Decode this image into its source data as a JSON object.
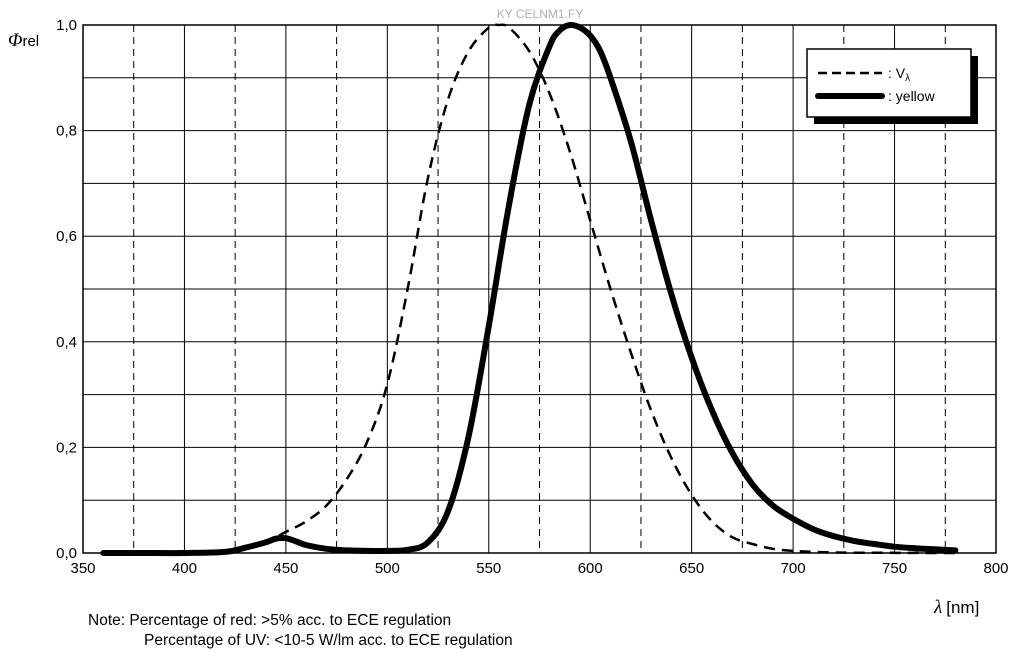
{
  "chart_data": {
    "type": "line",
    "watermark": "KY CELNM1.FY",
    "ylabel_symbol": "Φ",
    "ylabel_sub": "rel",
    "xlabel_symbol": "λ",
    "xlabel_unit": "[nm]",
    "xlim": [
      350,
      800
    ],
    "ylim": [
      0,
      1.0
    ],
    "x_ticks": [
      350,
      400,
      450,
      500,
      550,
      600,
      650,
      700,
      750,
      800
    ],
    "x_tick_labels": [
      "350",
      "400",
      "450",
      "500",
      "550",
      "600",
      "650",
      "700",
      "750",
      "800"
    ],
    "x_minor_dashed": [
      375,
      425,
      475,
      525,
      575,
      625,
      675,
      725,
      775
    ],
    "y_ticks": [
      0,
      0.2,
      0.4,
      0.6,
      0.8,
      1.0
    ],
    "y_tick_labels": [
      "0,0",
      "0,2",
      "0,4",
      "0,6",
      "0,8",
      "1,0"
    ],
    "y_minor": [
      0.1,
      0.3,
      0.5,
      0.7,
      0.9
    ],
    "grid": true,
    "legend_position": "top-right",
    "legend": [
      {
        "style": "dashed",
        "label": ": V",
        "sub": "λ"
      },
      {
        "style": "solid",
        "label": ": yellow"
      }
    ],
    "series": [
      {
        "name": "Vλ",
        "style": "dashed",
        "x": [
          430,
          440,
          450,
          460,
          470,
          480,
          490,
          500,
          510,
          520,
          530,
          540,
          550,
          555,
          560,
          570,
          580,
          590,
          600,
          610,
          620,
          630,
          640,
          650,
          660,
          670,
          680,
          690,
          700,
          720,
          740,
          760,
          780
        ],
        "y": [
          0.01,
          0.02,
          0.04,
          0.06,
          0.09,
          0.14,
          0.21,
          0.32,
          0.5,
          0.71,
          0.86,
          0.95,
          0.995,
          1.0,
          0.995,
          0.95,
          0.87,
          0.76,
          0.63,
          0.5,
          0.38,
          0.27,
          0.18,
          0.11,
          0.06,
          0.03,
          0.017,
          0.008,
          0.004,
          0.001,
          0.0005,
          0.0001,
          0.0
        ]
      },
      {
        "name": "yellow",
        "style": "solid",
        "x": [
          360,
          380,
          400,
          420,
          430,
          440,
          445,
          450,
          455,
          460,
          470,
          480,
          490,
          500,
          510,
          520,
          530,
          540,
          550,
          560,
          570,
          580,
          585,
          590,
          595,
          600,
          605,
          610,
          620,
          630,
          640,
          650,
          660,
          670,
          680,
          690,
          700,
          710,
          720,
          730,
          740,
          750,
          760,
          770,
          780
        ],
        "y": [
          0.0,
          0.0,
          0.0,
          0.002,
          0.01,
          0.02,
          0.027,
          0.028,
          0.022,
          0.015,
          0.008,
          0.005,
          0.004,
          0.004,
          0.006,
          0.02,
          0.08,
          0.22,
          0.43,
          0.66,
          0.85,
          0.96,
          0.99,
          1.0,
          0.995,
          0.98,
          0.95,
          0.9,
          0.78,
          0.63,
          0.49,
          0.37,
          0.27,
          0.19,
          0.13,
          0.09,
          0.065,
          0.045,
          0.032,
          0.023,
          0.017,
          0.012,
          0.009,
          0.007,
          0.005
        ]
      }
    ]
  },
  "notes": {
    "line1": "Note:  Percentage of red: >5% acc. to ECE regulation",
    "line2": "Percentage of UV: <10-5 W/lm acc. to ECE regulation"
  }
}
